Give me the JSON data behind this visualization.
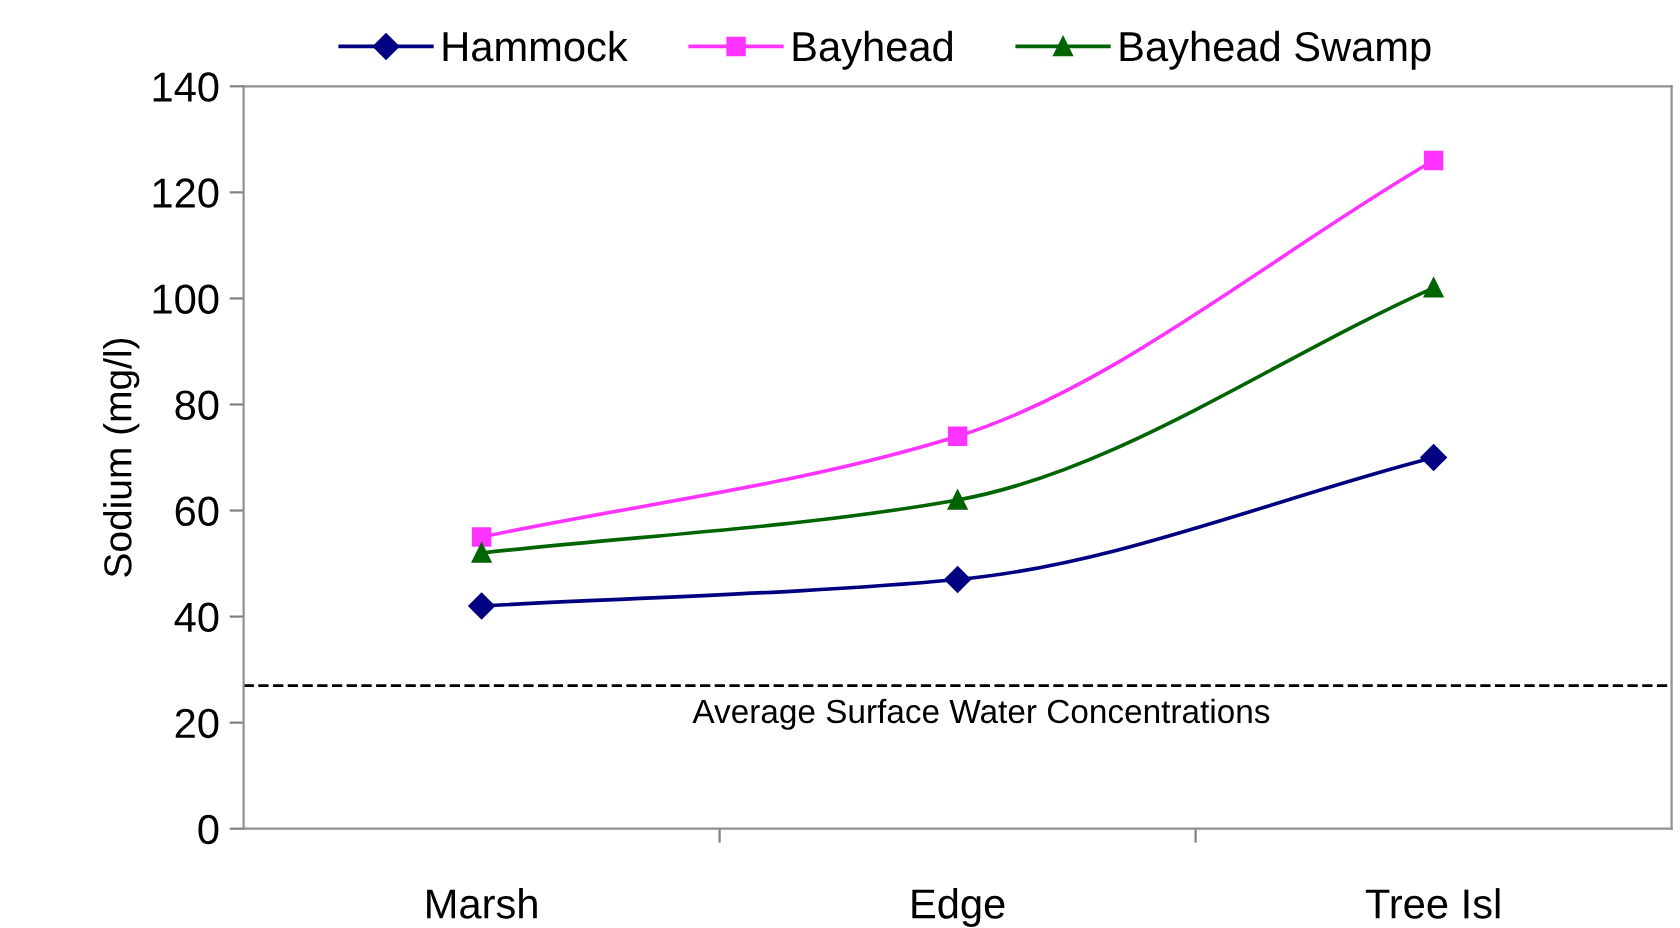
{
  "chart_data": {
    "type": "line",
    "ylabel": "Sodium (mg/l)",
    "categories": [
      "Marsh",
      "Edge",
      "Tree Isl"
    ],
    "series": [
      {
        "name": "Hammock",
        "color": "#000080",
        "values": [
          42,
          47,
          70
        ],
        "marker": "diamond"
      },
      {
        "name": "Bayhead",
        "color": "#ff33ff",
        "values": [
          55,
          74,
          126
        ],
        "marker": "square"
      },
      {
        "name": "Bayhead Swamp",
        "color": "#006400",
        "values": [
          52,
          62,
          102
        ],
        "marker": "triangle"
      }
    ],
    "ylim": [
      0,
      140
    ],
    "yticks": [
      0,
      20,
      40,
      60,
      80,
      100,
      120,
      140
    ],
    "grid": false,
    "legend": "top",
    "line_style": "solid",
    "ref_lines": [
      {
        "axis": "y",
        "value": 27,
        "label": "Average Surface Water Concentrations",
        "color": "#000000",
        "line_style": "dashed"
      }
    ]
  }
}
